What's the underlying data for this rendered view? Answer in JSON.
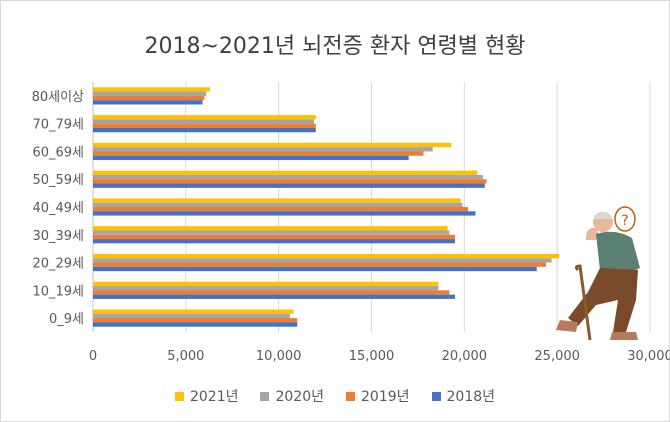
{
  "chart_data": {
    "type": "bar",
    "orientation": "horizontal",
    "title": "2018~2021년 뇌전증 환자 연령별 현황",
    "categories": [
      "0_9세",
      "10_19세",
      "20_29세",
      "30_39세",
      "40_49세",
      "50_59세",
      "60_69세",
      "70_79세",
      "80세이상"
    ],
    "series": [
      {
        "name": "2021년",
        "color": "#FFC000",
        "values": [
          10800,
          18600,
          25100,
          19100,
          19800,
          20700,
          19300,
          12000,
          6300
        ]
      },
      {
        "name": "2020년",
        "color": "#A5A5A5",
        "values": [
          10600,
          18600,
          24700,
          19200,
          19900,
          21000,
          18300,
          11900,
          6100
        ]
      },
      {
        "name": "2019년",
        "color": "#ED7D31",
        "values": [
          11000,
          19200,
          24400,
          19500,
          20200,
          21200,
          17800,
          12000,
          6000
        ]
      },
      {
        "name": "2018년",
        "color": "#4472C4",
        "values": [
          11000,
          19500,
          23900,
          19500,
          20600,
          21100,
          17000,
          12000,
          5900
        ]
      }
    ],
    "xlim": [
      0,
      30000
    ],
    "xticks": [
      "0",
      "5,000",
      "10,000",
      "15,000",
      "20,000",
      "25,000",
      "30,000"
    ],
    "grid": true,
    "legend_position": "bottom"
  }
}
